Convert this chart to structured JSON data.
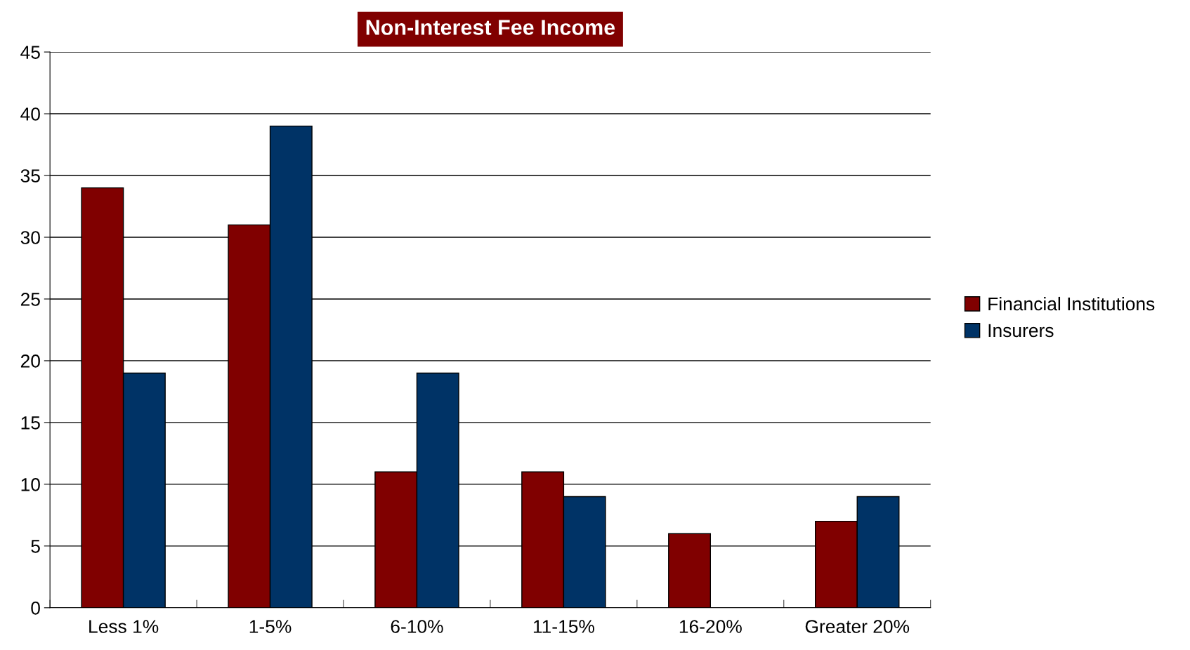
{
  "chart_data": {
    "type": "bar",
    "title": "Non-Interest Fee Income",
    "categories": [
      "Less 1%",
      "1-5%",
      "6-10%",
      "11-15%",
      "16-20%",
      "Greater 20%"
    ],
    "series": [
      {
        "name": "Financial Institutions",
        "color": "#800000",
        "values": [
          34,
          31,
          11,
          11,
          6,
          7
        ]
      },
      {
        "name": "Insurers",
        "color": "#003366",
        "values": [
          19,
          39,
          19,
          9,
          null,
          9
        ]
      }
    ],
    "ylim": [
      0,
      45
    ],
    "yticks": [
      0,
      5,
      10,
      15,
      20,
      25,
      30,
      35,
      40,
      45
    ],
    "grid": "y",
    "legend": "right"
  }
}
